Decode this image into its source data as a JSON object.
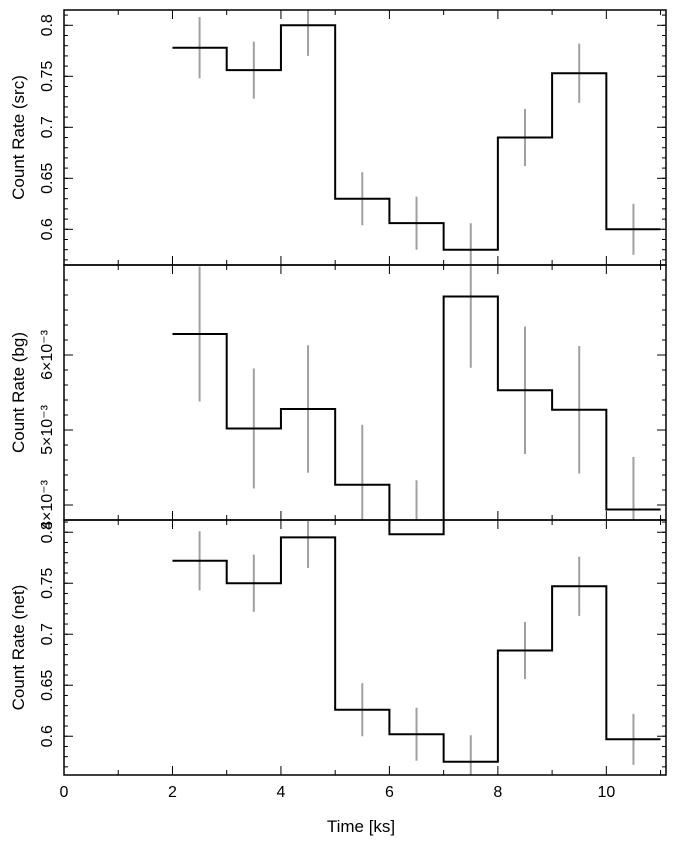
{
  "chart_data": {
    "type": "line",
    "xlabel": "Time [ks]",
    "xlim": [
      0,
      11.1
    ],
    "xticks": [
      0,
      2,
      4,
      6,
      8,
      10
    ],
    "bin_edges": [
      2,
      3,
      4,
      5,
      6,
      7,
      8,
      9,
      10,
      11
    ],
    "bin_centers": [
      2.5,
      3.5,
      4.5,
      5.5,
      6.5,
      7.5,
      8.5,
      9.5,
      10.5
    ],
    "colors": {
      "step": "#000000",
      "error": "#a0a0a0"
    },
    "panels": [
      {
        "ylabel": "Count Rate (src)",
        "ylim": [
          0.565,
          0.815
        ],
        "ytick_labels": [
          "0.6",
          "0.65",
          "0.7",
          "0.75",
          "0.8"
        ],
        "ytick_values": [
          0.6,
          0.65,
          0.7,
          0.75,
          0.8
        ],
        "values": [
          0.778,
          0.756,
          0.8,
          0.63,
          0.606,
          0.58,
          0.69,
          0.753,
          0.6
        ],
        "errors": [
          0.03,
          0.028,
          0.03,
          0.026,
          0.026,
          0.026,
          0.028,
          0.029,
          0.025
        ]
      },
      {
        "ylabel": "Count Rate (bg)",
        "ylim": [
          0.0038,
          0.0072
        ],
        "ytick_labels": [
          "4×10⁻³",
          "5×10⁻³",
          "6×10⁻³"
        ],
        "ytick_values": [
          0.004,
          0.005,
          0.006
        ],
        "values": [
          0.00628,
          0.00502,
          0.00528,
          0.00427,
          0.00361,
          0.00678,
          0.00553,
          0.00527,
          0.00394
        ],
        "errors": [
          0.0009,
          0.0008,
          0.00085,
          0.0008,
          0.00072,
          0.00095,
          0.00085,
          0.00085,
          0.0007
        ]
      },
      {
        "ylabel": "Count Rate (net)",
        "ylim": [
          0.562,
          0.812
        ],
        "ytick_labels": [
          "0.6",
          "0.65",
          "0.7",
          "0.75",
          "0.8"
        ],
        "ytick_values": [
          0.6,
          0.65,
          0.7,
          0.75,
          0.8
        ],
        "values": [
          0.772,
          0.75,
          0.795,
          0.626,
          0.602,
          0.575,
          0.684,
          0.747,
          0.597
        ],
        "errors": [
          0.029,
          0.028,
          0.03,
          0.026,
          0.026,
          0.026,
          0.028,
          0.029,
          0.025
        ]
      }
    ]
  }
}
